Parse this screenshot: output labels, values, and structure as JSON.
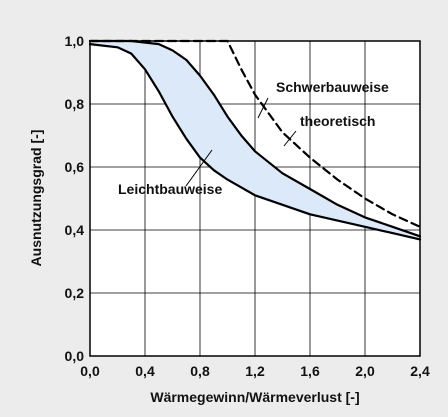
{
  "chart_data": {
    "type": "line",
    "title": "",
    "xlabel": "Wärmegewinn/Wärmeverlust [-]",
    "ylabel": "Ausnutzungsgrad [-]",
    "xlim": [
      0,
      2.4
    ],
    "ylim": [
      0,
      1.0
    ],
    "x_ticks": [
      "0,0",
      "0,4",
      "0,8",
      "1,2",
      "1,6",
      "2,0",
      "2,4"
    ],
    "y_ticks": [
      "0,0",
      "0,2",
      "0,4",
      "0,6",
      "0,8",
      "1,0"
    ],
    "grid": true,
    "series": [
      {
        "name": "Schwerbauweise",
        "style": "solid",
        "x": [
          0.0,
          0.3,
          0.5,
          0.6,
          0.7,
          0.8,
          0.9,
          1.0,
          1.1,
          1.2,
          1.4,
          1.6,
          1.8,
          2.0,
          2.2,
          2.4
        ],
        "y": [
          1.0,
          1.0,
          0.99,
          0.97,
          0.94,
          0.89,
          0.83,
          0.76,
          0.7,
          0.65,
          0.58,
          0.53,
          0.48,
          0.44,
          0.41,
          0.38
        ]
      },
      {
        "name": "theoretisch",
        "style": "dashed",
        "x": [
          0.0,
          1.0,
          1.1,
          1.2,
          1.4,
          1.6,
          1.8,
          2.0,
          2.2,
          2.4
        ],
        "y": [
          1.0,
          1.0,
          0.91,
          0.83,
          0.71,
          0.63,
          0.56,
          0.5,
          0.45,
          0.41
        ]
      },
      {
        "name": "Leichtbauweise",
        "style": "solid",
        "x": [
          0.0,
          0.2,
          0.3,
          0.4,
          0.5,
          0.6,
          0.7,
          0.8,
          0.9,
          1.0,
          1.2,
          1.4,
          1.6,
          1.8,
          2.0,
          2.2,
          2.4
        ],
        "y": [
          0.99,
          0.98,
          0.96,
          0.91,
          0.84,
          0.76,
          0.69,
          0.63,
          0.59,
          0.56,
          0.51,
          0.48,
          0.45,
          0.43,
          0.41,
          0.39,
          0.37
        ]
      }
    ],
    "band_fill": "#dbe9f8",
    "line_color": "#000000",
    "background": "#ececec",
    "annotations": [
      {
        "text": "Schwerbauweise"
      },
      {
        "text": "theoretisch"
      },
      {
        "text": "Leichtbauweise"
      }
    ]
  }
}
